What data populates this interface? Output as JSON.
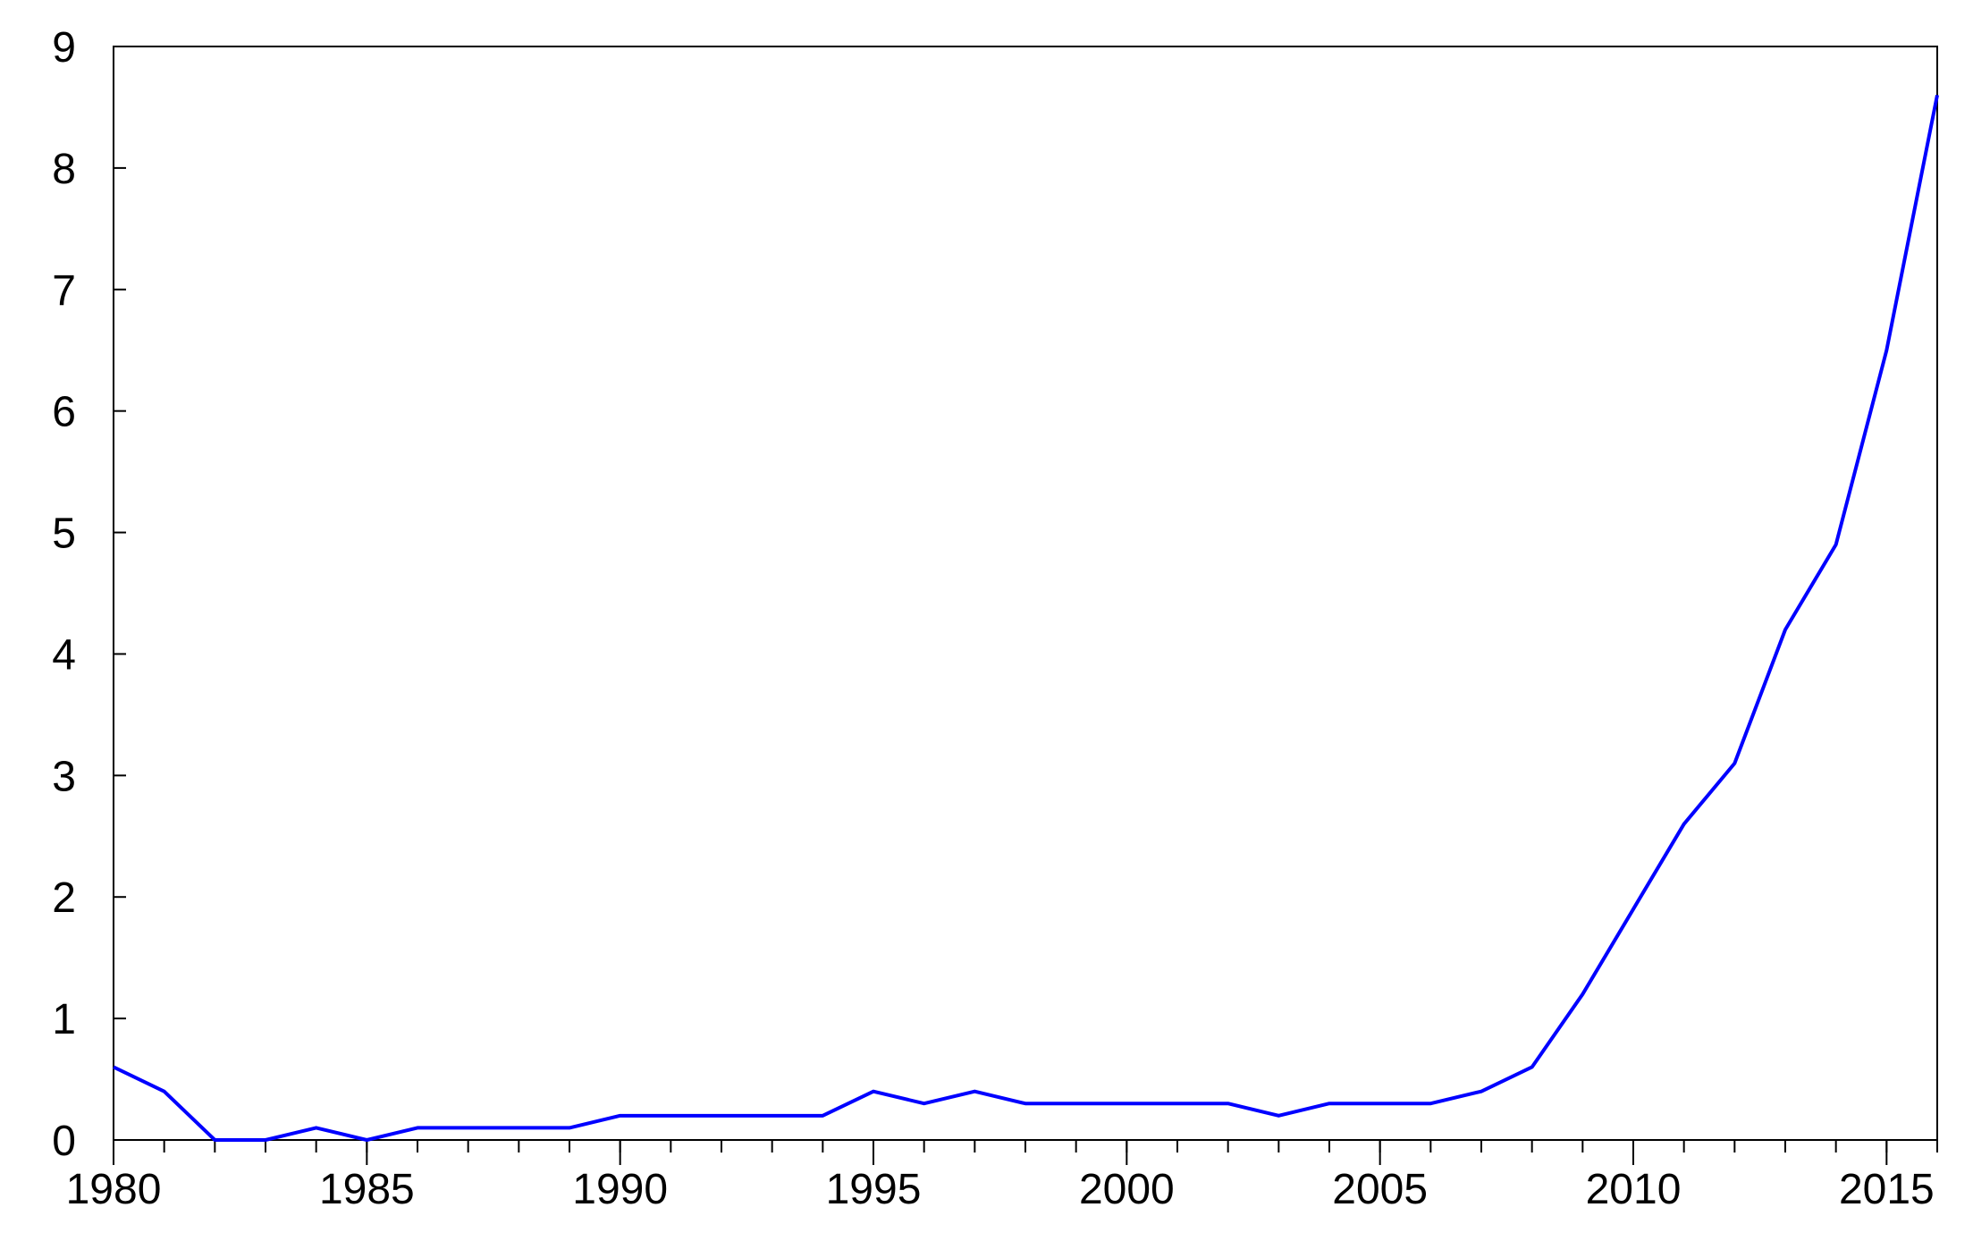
{
  "chart_data": {
    "type": "line",
    "x": [
      1980,
      1981,
      1982,
      1983,
      1984,
      1985,
      1986,
      1987,
      1988,
      1989,
      1990,
      1991,
      1992,
      1993,
      1994,
      1995,
      1996,
      1997,
      1998,
      1999,
      2000,
      2001,
      2002,
      2003,
      2004,
      2005,
      2006,
      2007,
      2008,
      2009,
      2010,
      2011,
      2012,
      2013,
      2014,
      2015,
      2016
    ],
    "values": [
      0.6,
      0.4,
      0,
      0,
      0.1,
      0,
      0.1,
      0.1,
      0.1,
      0.1,
      0.2,
      0.2,
      0.2,
      0.2,
      0.2,
      0.4,
      0.3,
      0.4,
      0.3,
      0.3,
      0.3,
      0.3,
      0.3,
      0.2,
      0.3,
      0.3,
      0.3,
      0.4,
      0.6,
      1.2,
      1.9,
      2.6,
      3.1,
      4.2,
      4.9,
      6.5,
      8.6
    ],
    "color": "#0000ff",
    "xlim": [
      1980,
      2016
    ],
    "xticks": [
      1980,
      1985,
      1990,
      1995,
      2000,
      2005,
      2010,
      2015
    ],
    "ylim": [
      0,
      9
    ],
    "yticks": [
      0,
      1,
      2,
      3,
      4,
      5,
      6,
      7,
      8,
      9
    ]
  }
}
